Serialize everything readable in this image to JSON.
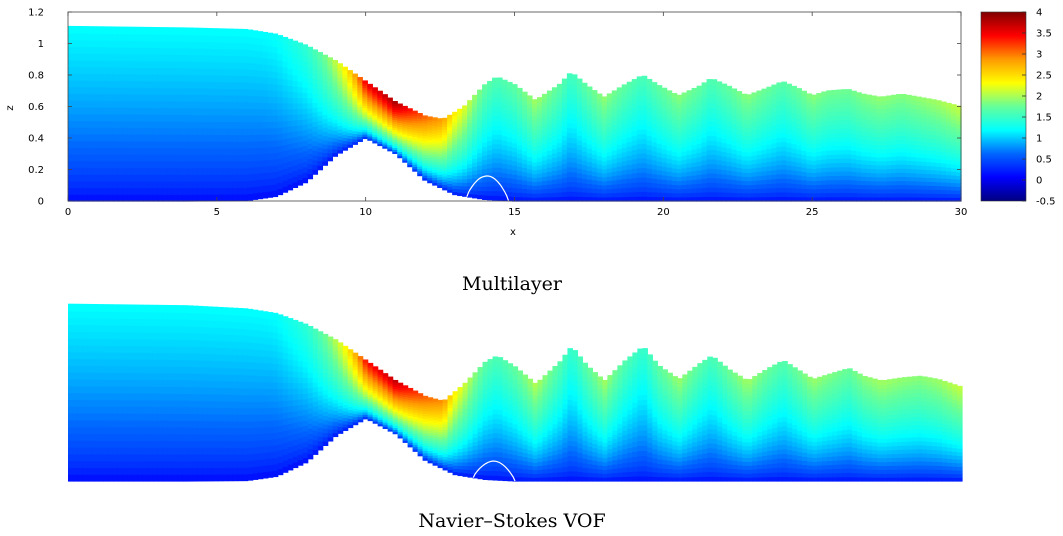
{
  "chart_data": [
    {
      "type": "heatmap",
      "title": "",
      "caption": "Multilayer",
      "xlabel": "x",
      "ylabel": "z",
      "xlim": [
        0,
        30
      ],
      "ylim": [
        0,
        1.2
      ],
      "xticks": [
        "0",
        "5",
        "10",
        "15",
        "20",
        "25",
        "30"
      ],
      "yticks": [
        "0",
        "0.2",
        "0.4",
        "0.6",
        "0.8",
        "1",
        "1.2"
      ],
      "colorbar": {
        "range": [
          -0.5,
          4
        ],
        "ticks": [
          "4",
          "3.5",
          "3",
          "2.5",
          "2",
          "1.5",
          "1",
          "0.5",
          "0",
          "-0.5"
        ],
        "colormap": "jet"
      },
      "bottom_profile": {
        "x": [
          0,
          4,
          6,
          7,
          8,
          9,
          10,
          11,
          12,
          13,
          14,
          15,
          30
        ],
        "z": [
          0,
          0,
          0.003,
          0.03,
          0.12,
          0.29,
          0.4,
          0.3,
          0.13,
          0.04,
          0.01,
          0,
          0
        ]
      },
      "free_surface": {
        "x": [
          0,
          4,
          6,
          7,
          8,
          9,
          10,
          11,
          12,
          12.6,
          13.3,
          14,
          14.4,
          15,
          15.7,
          16.5,
          16.9,
          17.4,
          18,
          18.7,
          19.3,
          19.8,
          20.5,
          21.2,
          21.6,
          22.2,
          22.8,
          23.5,
          24,
          24.5,
          25,
          25.5,
          26.2,
          26.7,
          27.3,
          28,
          28.6,
          29.2,
          30
        ],
        "z": [
          1.11,
          1.1,
          1.09,
          1.06,
          0.99,
          0.89,
          0.76,
          0.63,
          0.54,
          0.52,
          0.6,
          0.74,
          0.79,
          0.74,
          0.64,
          0.74,
          0.82,
          0.74,
          0.66,
          0.74,
          0.8,
          0.74,
          0.67,
          0.73,
          0.78,
          0.73,
          0.67,
          0.72,
          0.76,
          0.72,
          0.67,
          0.7,
          0.71,
          0.68,
          0.66,
          0.68,
          0.66,
          0.64,
          0.6
        ]
      },
      "contour_bump": {
        "x_range": [
          13.4,
          14.8
        ],
        "z_peak": 0.15
      }
    },
    {
      "type": "heatmap",
      "title": "",
      "caption": "Navier–Stokes VOF",
      "xlim": [
        0,
        30
      ],
      "ylim": [
        0,
        1.2
      ],
      "colormap": "jet",
      "bottom_profile": {
        "x": [
          0,
          4,
          6,
          7,
          8,
          9,
          10,
          11,
          12,
          13,
          14,
          15,
          30
        ],
        "z": [
          0,
          0,
          0.003,
          0.03,
          0.12,
          0.29,
          0.4,
          0.3,
          0.13,
          0.04,
          0.01,
          0,
          0
        ]
      },
      "free_surface": {
        "x": [
          0,
          4,
          6,
          7,
          8,
          9,
          10,
          11,
          12,
          12.6,
          13.3,
          14,
          14.4,
          15,
          15.7,
          16.5,
          16.9,
          17.4,
          18,
          18.7,
          19.3,
          19.8,
          20.5,
          21.2,
          21.6,
          22.2,
          22.8,
          23.5,
          24,
          24.5,
          25,
          25.5,
          26.2,
          26.7,
          27.3,
          28,
          28.6,
          29.2,
          30
        ],
        "z": [
          1.13,
          1.12,
          1.1,
          1.07,
          1.0,
          0.9,
          0.77,
          0.64,
          0.54,
          0.51,
          0.62,
          0.76,
          0.8,
          0.73,
          0.62,
          0.76,
          0.86,
          0.74,
          0.64,
          0.77,
          0.86,
          0.74,
          0.65,
          0.75,
          0.8,
          0.71,
          0.64,
          0.72,
          0.77,
          0.71,
          0.65,
          0.68,
          0.72,
          0.67,
          0.64,
          0.66,
          0.67,
          0.65,
          0.6
        ]
      },
      "contour_bump": {
        "x_range": [
          13.6,
          15.0
        ],
        "z_peak": 0.12
      }
    }
  ]
}
